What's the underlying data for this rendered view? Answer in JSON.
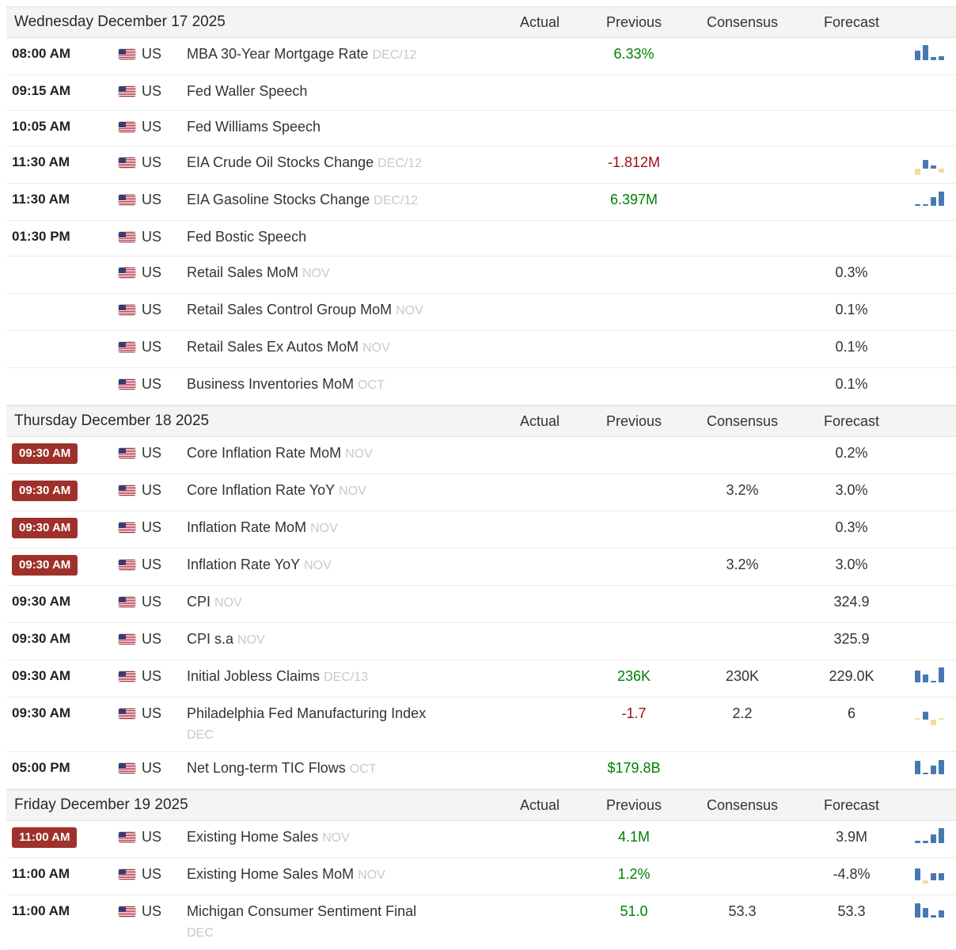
{
  "columns": {
    "actual": "Actual",
    "previous": "Previous",
    "consensus": "Consensus",
    "forecast": "Forecast"
  },
  "colors": {
    "positive": "#008000",
    "negative": "#9e0c0c",
    "badge_bg": "#9e312b",
    "header_bg": "#f4f4f4",
    "chart_blue": "#4779b0",
    "chart_tan": "#f5d9a0"
  },
  "sections": [
    {
      "date": "Wednesday December 17 2025",
      "rows": [
        {
          "time": "08:00 AM",
          "time_badge": false,
          "country": "US",
          "event": "MBA 30-Year Mortgage Rate",
          "period": "DEC/12",
          "period_below": "",
          "actual": "",
          "previous": "6.33%",
          "previous_color": "green",
          "consensus": "",
          "forecast": "",
          "chart": [
            {
              "v": 12,
              "c": "blue"
            },
            {
              "v": 19,
              "c": "blue"
            },
            {
              "v": 4,
              "c": "blue"
            },
            {
              "v": 5,
              "c": "blue"
            }
          ]
        },
        {
          "time": "09:15 AM",
          "time_badge": false,
          "country": "US",
          "event": "Fed Waller Speech",
          "period": "",
          "period_below": "",
          "actual": "",
          "previous": "",
          "consensus": "",
          "forecast": "",
          "chart": null
        },
        {
          "time": "10:05 AM",
          "time_badge": false,
          "country": "US",
          "event": "Fed Williams Speech",
          "period": "",
          "period_below": "",
          "actual": "",
          "previous": "",
          "consensus": "",
          "forecast": "",
          "chart": null
        },
        {
          "time": "11:30 AM",
          "time_badge": false,
          "country": "US",
          "event": "EIA Crude Oil Stocks Change",
          "period": "DEC/12",
          "period_below": "",
          "actual": "",
          "previous": "-1.812M",
          "previous_color": "red",
          "consensus": "",
          "forecast": "",
          "chart": [
            {
              "v": -8,
              "c": "tan"
            },
            {
              "v": 11,
              "c": "blue"
            },
            {
              "v": 4,
              "c": "blue"
            },
            {
              "v": -5,
              "c": "tan"
            }
          ]
        },
        {
          "time": "11:30 AM",
          "time_badge": false,
          "country": "US",
          "event": "EIA Gasoline Stocks Change",
          "period": "DEC/12",
          "period_below": "",
          "actual": "",
          "previous": "6.397M",
          "previous_color": "green",
          "consensus": "",
          "forecast": "",
          "chart": [
            {
              "v": 2,
              "c": "blue"
            },
            {
              "v": 2,
              "c": "blue"
            },
            {
              "v": 11,
              "c": "blue"
            },
            {
              "v": 18,
              "c": "blue"
            }
          ]
        },
        {
          "time": "01:30 PM",
          "time_badge": false,
          "country": "US",
          "event": "Fed Bostic Speech",
          "period": "",
          "period_below": "",
          "actual": "",
          "previous": "",
          "consensus": "",
          "forecast": "",
          "chart": null
        },
        {
          "time": "",
          "time_badge": false,
          "country": "US",
          "event": "Retail Sales MoM",
          "period": "NOV",
          "period_below": "",
          "actual": "",
          "previous": "",
          "consensus": "",
          "forecast": "0.3%",
          "chart": null
        },
        {
          "time": "",
          "time_badge": false,
          "country": "US",
          "event": "Retail Sales Control Group MoM",
          "period": "NOV",
          "period_below": "",
          "actual": "",
          "previous": "",
          "consensus": "",
          "forecast": "0.1%",
          "chart": null
        },
        {
          "time": "",
          "time_badge": false,
          "country": "US",
          "event": "Retail Sales Ex Autos MoM",
          "period": "NOV",
          "period_below": "",
          "actual": "",
          "previous": "",
          "consensus": "",
          "forecast": "0.1%",
          "chart": null
        },
        {
          "time": "",
          "time_badge": false,
          "country": "US",
          "event": "Business Inventories MoM",
          "period": "OCT",
          "period_below": "",
          "actual": "",
          "previous": "",
          "consensus": "",
          "forecast": "0.1%",
          "chart": null
        }
      ]
    },
    {
      "date": "Thursday December 18 2025",
      "rows": [
        {
          "time": "09:30 AM",
          "time_badge": true,
          "country": "US",
          "event": "Core Inflation Rate MoM",
          "period": "NOV",
          "period_below": "",
          "actual": "",
          "previous": "",
          "consensus": "",
          "forecast": "0.2%",
          "chart": null
        },
        {
          "time": "09:30 AM",
          "time_badge": true,
          "country": "US",
          "event": "Core Inflation Rate YoY",
          "period": "NOV",
          "period_below": "",
          "actual": "",
          "previous": "",
          "consensus": "3.2%",
          "forecast": "3.0%",
          "chart": null
        },
        {
          "time": "09:30 AM",
          "time_badge": true,
          "country": "US",
          "event": "Inflation Rate MoM",
          "period": "NOV",
          "period_below": "",
          "actual": "",
          "previous": "",
          "consensus": "",
          "forecast": "0.3%",
          "chart": null
        },
        {
          "time": "09:30 AM",
          "time_badge": true,
          "country": "US",
          "event": "Inflation Rate YoY",
          "period": "NOV",
          "period_below": "",
          "actual": "",
          "previous": "",
          "consensus": "3.2%",
          "forecast": "3.0%",
          "chart": null
        },
        {
          "time": "09:30 AM",
          "time_badge": false,
          "country": "US",
          "event": "CPI",
          "period": "NOV",
          "period_below": "",
          "actual": "",
          "previous": "",
          "consensus": "",
          "forecast": "324.9",
          "chart": null
        },
        {
          "time": "09:30 AM",
          "time_badge": false,
          "country": "US",
          "event": "CPI s.a",
          "period": "NOV",
          "period_below": "",
          "actual": "",
          "previous": "",
          "consensus": "",
          "forecast": "325.9",
          "chart": null
        },
        {
          "time": "09:30 AM",
          "time_badge": false,
          "country": "US",
          "event": "Initial Jobless Claims",
          "period": "DEC/13",
          "period_below": "",
          "actual": "",
          "previous": "236K",
          "previous_color": "green",
          "consensus": "230K",
          "forecast": "229.0K",
          "chart": [
            {
              "v": 15,
              "c": "blue"
            },
            {
              "v": 10,
              "c": "blue"
            },
            {
              "v": 2,
              "c": "blue"
            },
            {
              "v": 19,
              "c": "blue"
            }
          ]
        },
        {
          "time": "09:30 AM",
          "time_badge": false,
          "country": "US",
          "event": "Philadelphia Fed Manufacturing Index",
          "period": "",
          "period_below": "DEC",
          "actual": "",
          "previous": "-1.7",
          "previous_color": "red",
          "consensus": "2.2",
          "forecast": "6",
          "chart": [
            {
              "v": 2,
              "c": "tan"
            },
            {
              "v": 10,
              "c": "blue"
            },
            {
              "v": -7,
              "c": "tan"
            },
            {
              "v": 2,
              "c": "tan"
            }
          ]
        },
        {
          "time": "05:00 PM",
          "time_badge": false,
          "country": "US",
          "event": "Net Long-term TIC Flows",
          "period": "OCT",
          "period_below": "",
          "actual": "",
          "previous": "$179.8B",
          "previous_color": "green",
          "consensus": "",
          "forecast": "",
          "chart": [
            {
              "v": 17,
              "c": "blue"
            },
            {
              "v": 2,
              "c": "blue"
            },
            {
              "v": 11,
              "c": "blue"
            },
            {
              "v": 18,
              "c": "blue"
            }
          ]
        }
      ]
    },
    {
      "date": "Friday December 19 2025",
      "rows": [
        {
          "time": "11:00 AM",
          "time_badge": true,
          "country": "US",
          "event": "Existing Home Sales",
          "period": "NOV",
          "period_below": "",
          "actual": "",
          "previous": "4.1M",
          "previous_color": "green",
          "consensus": "",
          "forecast": "3.9M",
          "chart": [
            {
              "v": 3,
              "c": "blue"
            },
            {
              "v": 3,
              "c": "blue"
            },
            {
              "v": 11,
              "c": "blue"
            },
            {
              "v": 19,
              "c": "blue"
            }
          ]
        },
        {
          "time": "11:00 AM",
          "time_badge": false,
          "country": "US",
          "event": "Existing Home Sales MoM",
          "period": "NOV",
          "period_below": "",
          "actual": "",
          "previous": "1.2%",
          "previous_color": "green",
          "consensus": "",
          "forecast": "-4.8%",
          "chart": [
            {
              "v": 15,
              "c": "blue"
            },
            {
              "v": -4,
              "c": "tan"
            },
            {
              "v": 9,
              "c": "blue"
            },
            {
              "v": 9,
              "c": "blue"
            }
          ]
        },
        {
          "time": "11:00 AM",
          "time_badge": false,
          "country": "US",
          "event": "Michigan Consumer Sentiment Final",
          "period": "",
          "period_below": "DEC",
          "actual": "",
          "previous": "51.0",
          "previous_color": "green",
          "consensus": "53.3",
          "forecast": "53.3",
          "chart": [
            {
              "v": 18,
              "c": "blue"
            },
            {
              "v": 12,
              "c": "blue"
            },
            {
              "v": 3,
              "c": "blue"
            },
            {
              "v": 9,
              "c": "blue"
            }
          ]
        }
      ]
    }
  ]
}
